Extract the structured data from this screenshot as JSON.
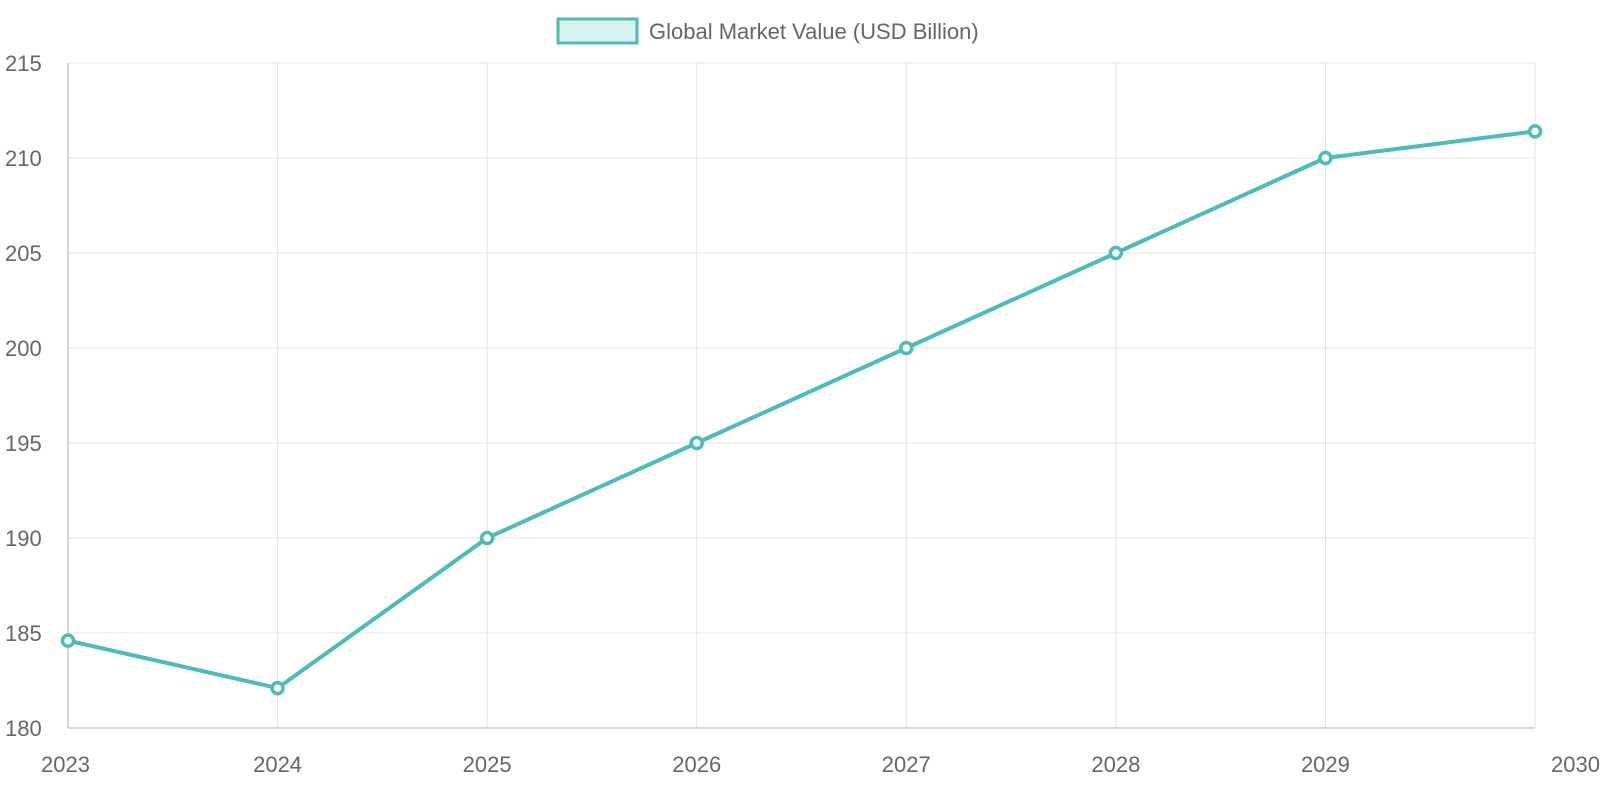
{
  "chart_data": {
    "type": "line",
    "categories": [
      "2023",
      "2024",
      "2025",
      "2026",
      "2027",
      "2028",
      "2029",
      "2030"
    ],
    "series": [
      {
        "name": "Global Market Value (USD Billion)",
        "values": [
          184.6,
          182.1,
          190,
          195,
          200,
          205,
          210,
          211.4
        ]
      }
    ],
    "ylim": [
      180,
      215
    ],
    "y_ticks": [
      180,
      185,
      190,
      195,
      200,
      205,
      210,
      215
    ],
    "grid": true,
    "legend_position": "top-center",
    "colors": {
      "line": "#4bbcb8",
      "legend_fill": "#d8f1ef",
      "point_fill": "#ffffff"
    }
  }
}
